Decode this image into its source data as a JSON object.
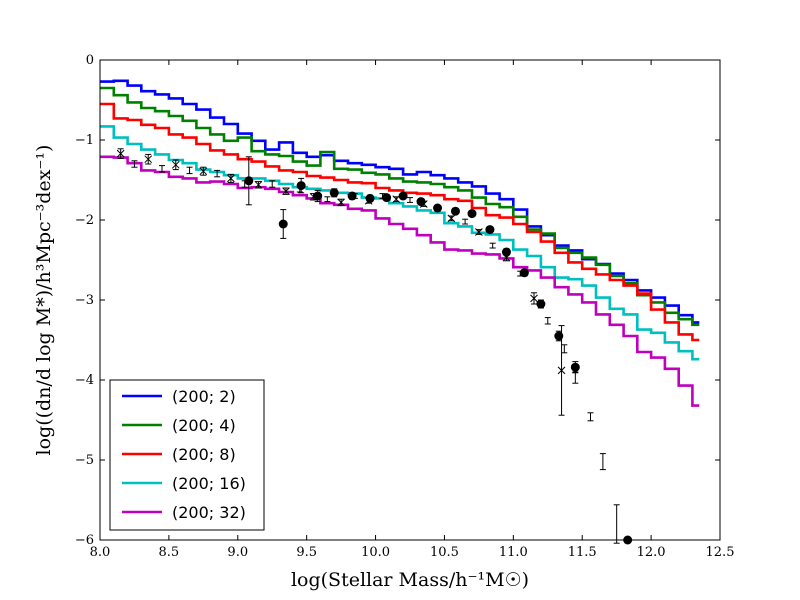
{
  "chart_data": {
    "type": "line",
    "xlabel": "log(Stellar Mass/h⁻¹M☉)",
    "ylabel": "log((dn/d log M*)/h³Mpc⁻³dex⁻¹)",
    "xlim": [
      8.0,
      12.5
    ],
    "ylim": [
      -6,
      0
    ],
    "xticks": [
      "8.0",
      "8.5",
      "9.0",
      "9.5",
      "10.0",
      "10.5",
      "11.0",
      "11.5",
      "12.0",
      "12.5"
    ],
    "yticks": [
      "0",
      "−1",
      "−2",
      "−3",
      "−4",
      "−5",
      "−6"
    ],
    "grid": false,
    "legend_position": "lower-left",
    "bin_edges": [
      8.0,
      8.1,
      8.2,
      8.3,
      8.4,
      8.5,
      8.6,
      8.7,
      8.8,
      8.9,
      9.0,
      9.1,
      9.2,
      9.3,
      9.4,
      9.5,
      9.6,
      9.7,
      9.8,
      9.9,
      10.0,
      10.1,
      10.2,
      10.3,
      10.4,
      10.5,
      10.6,
      10.7,
      10.8,
      10.9,
      11.0,
      11.1,
      11.2,
      11.3,
      11.4,
      11.5,
      11.6,
      11.7,
      11.8,
      11.9,
      12.0,
      12.1,
      12.2,
      12.3,
      12.35
    ],
    "series": [
      {
        "name": "(200; 2)",
        "color": "#0000ff",
        "values": [
          -0.27,
          -0.26,
          -0.32,
          -0.39,
          -0.43,
          -0.48,
          -0.55,
          -0.62,
          -0.72,
          -0.8,
          -0.92,
          -1.01,
          -1.12,
          -1.03,
          -1.16,
          -1.21,
          -1.19,
          -1.26,
          -1.29,
          -1.31,
          -1.34,
          -1.36,
          -1.43,
          -1.4,
          -1.44,
          -1.48,
          -1.53,
          -1.58,
          -1.67,
          -1.74,
          -1.87,
          -2.08,
          -2.19,
          -2.32,
          -2.38,
          -2.49,
          -2.55,
          -2.67,
          -2.75,
          -2.88,
          -2.97,
          -3.07,
          -3.19,
          -3.28
        ]
      },
      {
        "name": "(200; 4)",
        "color": "#008000",
        "values": [
          -0.35,
          -0.44,
          -0.53,
          -0.6,
          -0.64,
          -0.7,
          -0.76,
          -0.85,
          -0.93,
          -1.01,
          -0.97,
          -1.14,
          -1.18,
          -1.2,
          -1.27,
          -1.32,
          -1.15,
          -1.36,
          -1.37,
          -1.41,
          -1.43,
          -1.48,
          -1.52,
          -1.53,
          -1.55,
          -1.59,
          -1.63,
          -1.72,
          -1.8,
          -1.84,
          -1.96,
          -2.12,
          -2.17,
          -2.35,
          -2.41,
          -2.47,
          -2.56,
          -2.7,
          -2.79,
          -2.94,
          -3.03,
          -3.16,
          -3.24,
          -3.31
        ]
      },
      {
        "name": "(200; 8)",
        "color": "#ff0000",
        "values": [
          -0.55,
          -0.73,
          -0.75,
          -0.81,
          -0.85,
          -0.93,
          -0.97,
          -1.05,
          -1.13,
          -1.18,
          -1.24,
          -1.27,
          -1.33,
          -1.38,
          -1.4,
          -1.45,
          -1.47,
          -1.5,
          -1.53,
          -1.54,
          -1.6,
          -1.63,
          -1.66,
          -1.67,
          -1.69,
          -1.74,
          -1.76,
          -1.85,
          -1.94,
          -1.97,
          -2.05,
          -2.15,
          -2.27,
          -2.41,
          -2.53,
          -2.61,
          -2.68,
          -2.75,
          -2.82,
          -2.92,
          -3.12,
          -3.28,
          -3.43,
          -3.5
        ]
      },
      {
        "name": "(200; 16)",
        "color": "#00bfbf",
        "values": [
          -0.83,
          -0.97,
          -1.05,
          -1.12,
          -1.18,
          -1.25,
          -1.29,
          -1.37,
          -1.4,
          -1.44,
          -1.48,
          -1.48,
          -1.51,
          -1.55,
          -1.59,
          -1.61,
          -1.63,
          -1.66,
          -1.67,
          -1.72,
          -1.73,
          -1.79,
          -1.83,
          -1.88,
          -1.91,
          -2.04,
          -2.08,
          -2.16,
          -2.18,
          -2.25,
          -2.37,
          -2.45,
          -2.59,
          -2.72,
          -2.74,
          -2.82,
          -2.97,
          -3.11,
          -3.18,
          -3.37,
          -3.41,
          -3.53,
          -3.64,
          -3.74
        ]
      },
      {
        "name": "(200; 32)",
        "color": "#bf00bf",
        "values": [
          -1.21,
          -1.22,
          -1.29,
          -1.38,
          -1.4,
          -1.46,
          -1.48,
          -1.53,
          -1.52,
          -1.55,
          -1.6,
          -1.59,
          -1.61,
          -1.65,
          -1.69,
          -1.73,
          -1.79,
          -1.81,
          -1.86,
          -1.88,
          -1.98,
          -2.05,
          -2.11,
          -2.19,
          -2.28,
          -2.37,
          -2.38,
          -2.42,
          -2.43,
          -2.48,
          -2.59,
          -2.63,
          -2.72,
          -2.84,
          -2.93,
          -3.03,
          -3.18,
          -3.31,
          -3.45,
          -3.65,
          -3.72,
          -3.86,
          -4.07,
          -4.32
        ]
      }
    ],
    "observed_circles": [
      {
        "x": 9.08,
        "y": -1.51,
        "err": 0.3
      },
      {
        "x": 9.33,
        "y": -2.05,
        "err": 0.18
      },
      {
        "x": 9.46,
        "y": -1.57,
        "err": 0.09
      },
      {
        "x": 9.58,
        "y": -1.7,
        "err": 0.07
      },
      {
        "x": 9.7,
        "y": -1.66,
        "err": 0.05
      },
      {
        "x": 9.83,
        "y": -1.7,
        "err": 0.04
      },
      {
        "x": 9.96,
        "y": -1.73,
        "err": 0.04
      },
      {
        "x": 10.08,
        "y": -1.72,
        "err": 0.03
      },
      {
        "x": 10.2,
        "y": -1.7,
        "err": 0.03
      },
      {
        "x": 10.33,
        "y": -1.77,
        "err": 0.03
      },
      {
        "x": 10.45,
        "y": -1.85,
        "err": 0.03
      },
      {
        "x": 10.58,
        "y": -1.89,
        "err": 0.03
      },
      {
        "x": 10.7,
        "y": -1.92,
        "err": 0.03
      },
      {
        "x": 10.83,
        "y": -2.12,
        "err": 0.03
      },
      {
        "x": 10.95,
        "y": -2.4,
        "err": 0.04
      },
      {
        "x": 11.08,
        "y": -2.66,
        "err": 0.04
      },
      {
        "x": 11.2,
        "y": -3.05,
        "err": 0.05
      },
      {
        "x": 11.33,
        "y": -3.45,
        "err": 0.06
      },
      {
        "x": 11.45,
        "y": -3.84,
        "err": 0.07
      },
      {
        "x": 11.83,
        "y": -6.0,
        "err": 0.0
      }
    ],
    "observed_crosses": [
      {
        "x": 8.15,
        "y": -1.17,
        "err": 0.06
      },
      {
        "x": 8.35,
        "y": -1.24,
        "err": 0.06
      },
      {
        "x": 8.55,
        "y": -1.31,
        "err": 0.06
      },
      {
        "x": 8.75,
        "y": -1.39,
        "err": 0.05
      },
      {
        "x": 8.95,
        "y": -1.48,
        "err": 0.05
      },
      {
        "x": 9.15,
        "y": -1.56,
        "err": 0.04
      },
      {
        "x": 9.35,
        "y": -1.64,
        "err": 0.04
      },
      {
        "x": 9.55,
        "y": -1.71,
        "err": 0.04
      },
      {
        "x": 9.75,
        "y": -1.78,
        "err": 0.04
      },
      {
        "x": 9.95,
        "y": -1.76,
        "err": 0.03
      },
      {
        "x": 10.15,
        "y": -1.74,
        "err": 0.03
      },
      {
        "x": 10.35,
        "y": -1.8,
        "err": 0.03
      },
      {
        "x": 10.55,
        "y": -1.98,
        "err": 0.03
      },
      {
        "x": 10.75,
        "y": -2.15,
        "err": 0.03
      },
      {
        "x": 10.95,
        "y": -2.47,
        "err": 0.04
      },
      {
        "x": 11.15,
        "y": -2.98,
        "err": 0.07
      },
      {
        "x": 11.35,
        "y": -3.88,
        "err": 0.56
      }
    ],
    "observed_plus": [
      {
        "x": 8.25,
        "y": -1.3,
        "err": 0.04
      },
      {
        "x": 8.45,
        "y": -1.36,
        "err": 0.04
      },
      {
        "x": 8.65,
        "y": -1.38,
        "err": 0.04
      },
      {
        "x": 8.85,
        "y": -1.42,
        "err": 0.04
      },
      {
        "x": 9.05,
        "y": -1.55,
        "err": 0.04
      },
      {
        "x": 9.25,
        "y": -1.55,
        "err": 0.04
      },
      {
        "x": 9.45,
        "y": -1.62,
        "err": 0.03
      },
      {
        "x": 9.65,
        "y": -1.74,
        "err": 0.03
      },
      {
        "x": 9.85,
        "y": -1.7,
        "err": 0.03
      },
      {
        "x": 10.05,
        "y": -1.7,
        "err": 0.03
      },
      {
        "x": 10.25,
        "y": -1.75,
        "err": 0.03
      },
      {
        "x": 10.45,
        "y": -1.86,
        "err": 0.03
      },
      {
        "x": 10.65,
        "y": -2.02,
        "err": 0.03
      },
      {
        "x": 10.85,
        "y": -2.32,
        "err": 0.03
      },
      {
        "x": 11.05,
        "y": -2.67,
        "err": 0.03
      },
      {
        "x": 11.25,
        "y": -3.26,
        "err": 0.04
      },
      {
        "x": 11.37,
        "y": -3.61,
        "err": 0.05
      },
      {
        "x": 11.45,
        "y": -3.97,
        "err": 0.07
      },
      {
        "x": 11.56,
        "y": -4.46,
        "err": 0.05
      },
      {
        "x": 11.65,
        "y": -5.02,
        "err": 0.1
      },
      {
        "x": 11.75,
        "y": -5.8,
        "err": 0.24
      }
    ]
  }
}
